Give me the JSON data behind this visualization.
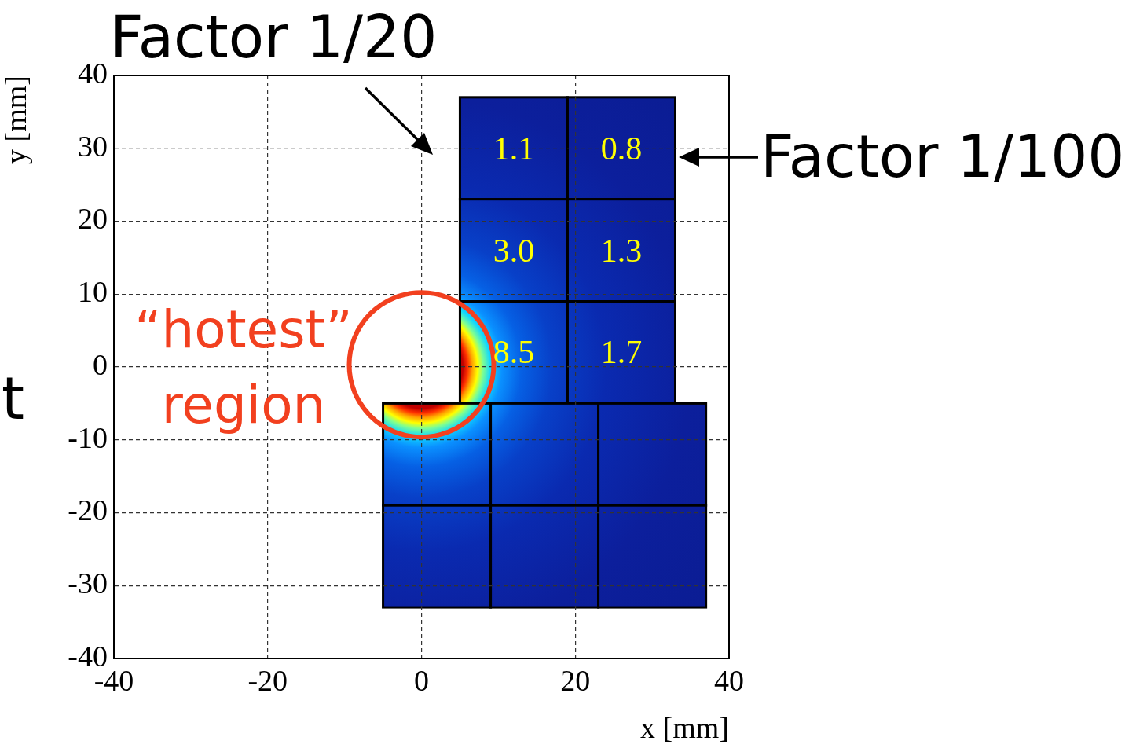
{
  "chart_data": {
    "type": "scatter",
    "xlabel": "x [mm]",
    "ylabel": "y [mm]",
    "xlim": [
      -40,
      40
    ],
    "ylim": [
      -40,
      40
    ],
    "xticks": [
      -40,
      -20,
      0,
      20,
      40
    ],
    "yticks": [
      -40,
      -30,
      -20,
      -10,
      0,
      10,
      20,
      30,
      40
    ],
    "grid": true,
    "annotations": [
      "Factor 1/20",
      "Factor 1/100",
      "“hotest” region",
      "t",
      "1.1",
      "0.8",
      "3.0",
      "1.3",
      "8.5",
      "1.7"
    ]
  }
}
